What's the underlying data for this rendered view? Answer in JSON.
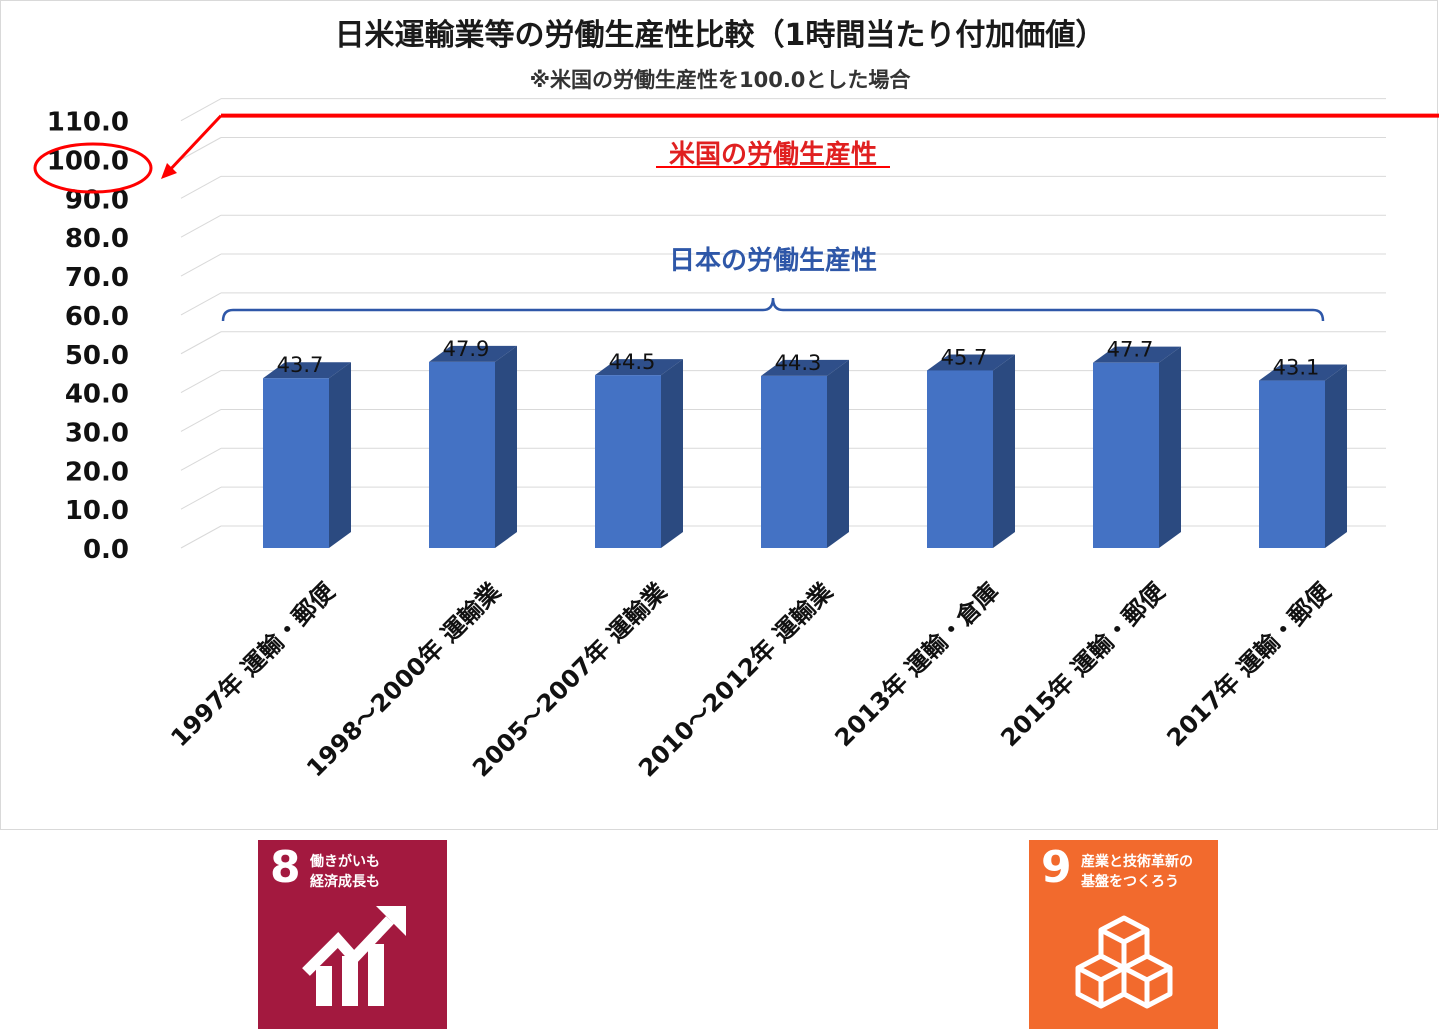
{
  "chart_data": {
    "type": "bar",
    "title": "日米運輸業等の労働生産性比較（1時間当たり付加価値）",
    "subtitle": "※米国の労働生産性を100.0とした場合",
    "categories": [
      "1997年 運輸・郵便",
      "1998～2000年 運輸業",
      "2005～2007年 運輸業",
      "2010～2012年 運輸業",
      "2013年 運輸・倉庫",
      "2015年 運輸・郵便",
      "2017年 運輸・郵便"
    ],
    "values": [
      43.7,
      47.9,
      44.5,
      44.3,
      45.7,
      47.7,
      43.1
    ],
    "data_labels": [
      "43.7",
      "47.9",
      "44.5",
      "44.3",
      "45.7",
      "47.7",
      "43.1"
    ],
    "yticks": [
      "0.0",
      "10.0",
      "20.0",
      "30.0",
      "40.0",
      "50.0",
      "60.0",
      "70.0",
      "80.0",
      "90.0",
      "100.0",
      "110.0"
    ],
    "ylim": [
      0,
      110
    ],
    "grid": true,
    "reference_line": {
      "value": 100,
      "label": "米国の労働生産性",
      "color": "#ff0000"
    },
    "series_annotation": {
      "label": "日本の労働生産性",
      "color": "#2e57a8"
    },
    "bar_color": "#4472c4",
    "bar_side_color": "#2b4a80",
    "bar_top_color": "#2f4f8a"
  },
  "sdg_badges": [
    {
      "number": "8",
      "text_line1": "働きがいも",
      "text_line2": "経済成長も",
      "icon": "growth-chart-icon",
      "color": "#a3193f"
    },
    {
      "number": "9",
      "text_line1": "産業と技術革新の",
      "text_line2": "基盤をつくろう",
      "icon": "stacked-cubes-icon",
      "color": "#f26a2d"
    }
  ]
}
